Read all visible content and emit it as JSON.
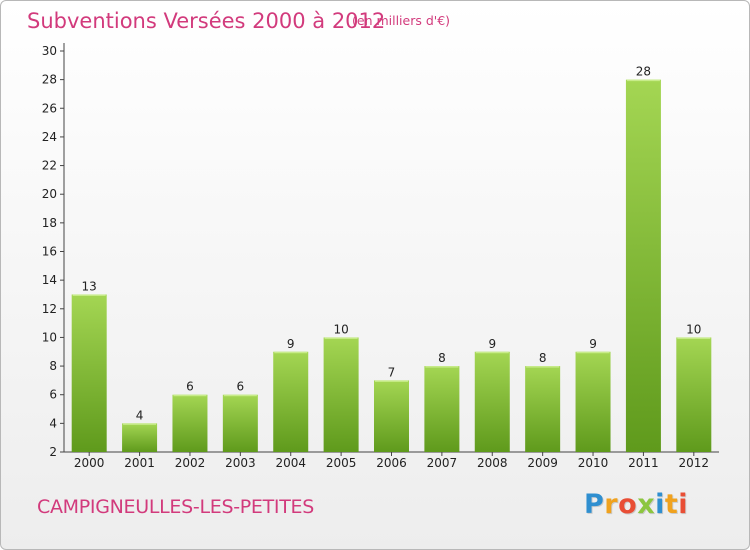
{
  "chart_data": {
    "type": "bar",
    "title": "Subventions Versées 2000 à 2012",
    "unit_note": "(en milliers d'€)",
    "categories": [
      "2000",
      "2001",
      "2002",
      "2003",
      "2004",
      "2005",
      "2006",
      "2007",
      "2008",
      "2009",
      "2010",
      "2011",
      "2012"
    ],
    "values": [
      13,
      4,
      6,
      6,
      9,
      10,
      7,
      8,
      9,
      8,
      9,
      28,
      10
    ],
    "ylim": [
      2,
      30
    ],
    "yticks": [
      2,
      4,
      6,
      8,
      10,
      12,
      14,
      16,
      18,
      20,
      22,
      24,
      26,
      28,
      30
    ],
    "grid": false,
    "bar_color": "#7ab733",
    "bar_color_light": "#a4d653",
    "bar_color_dark": "#5f9a1c"
  },
  "footer": {
    "commune": "CAMPIGNEULLES-LES-PETITES",
    "logo_letters": [
      {
        "ch": "P",
        "color": "#2f8fd0"
      },
      {
        "ch": "r",
        "color": "#f0a21e"
      },
      {
        "ch": "o",
        "color": "#e94e35"
      },
      {
        "ch": "x",
        "color": "#8cc63f"
      },
      {
        "ch": "i",
        "color": "#2f8fd0"
      },
      {
        "ch": "t",
        "color": "#f0a21e"
      },
      {
        "ch": "i",
        "color": "#e94e35"
      }
    ]
  },
  "colors": {
    "title": "#d23a7c",
    "axis": "#444444"
  }
}
